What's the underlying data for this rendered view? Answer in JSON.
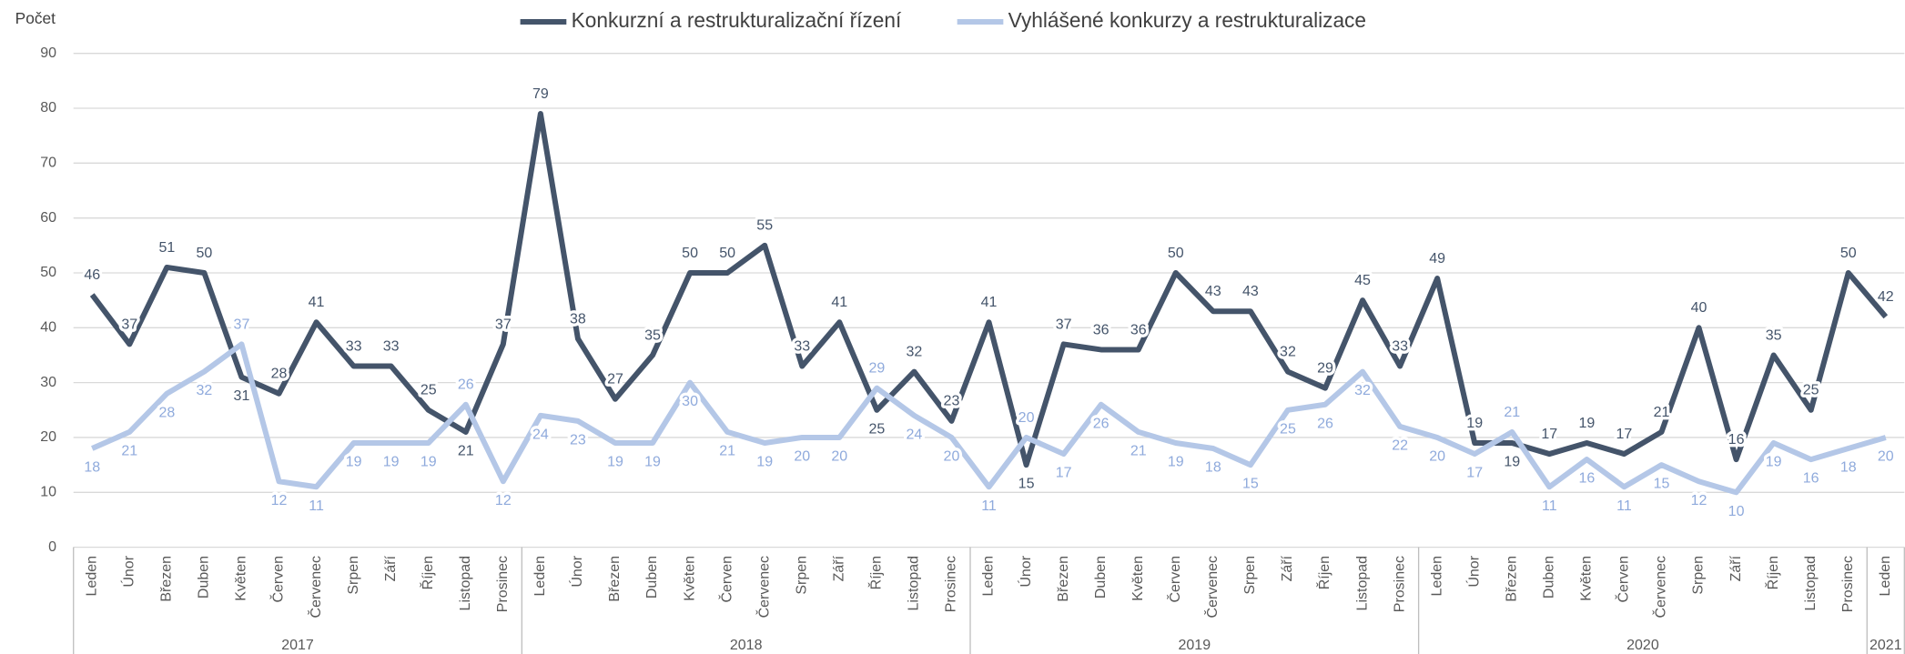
{
  "chart_data": {
    "type": "line",
    "y_axis_label": "Počet",
    "ylim": [
      0,
      90
    ],
    "yticks": [
      0,
      10,
      20,
      30,
      40,
      50,
      60,
      70,
      80,
      90
    ],
    "grid": true,
    "legend": "top",
    "groups": [
      {
        "name": "2017",
        "categories": [
          "Leden",
          "Únor",
          "Březen",
          "Duben",
          "Květen",
          "Červen",
          "Červenec",
          "Srpen",
          "Září",
          "Říjen",
          "Listopad",
          "Prosinec"
        ]
      },
      {
        "name": "2018",
        "categories": [
          "Leden",
          "Únor",
          "Březen",
          "Duben",
          "Květen",
          "Červen",
          "Červenec",
          "Srpen",
          "Září",
          "Říjen",
          "Listopad",
          "Prosinec"
        ]
      },
      {
        "name": "2019",
        "categories": [
          "Leden",
          "Únor",
          "Březen",
          "Duben",
          "Květen",
          "Červen",
          "Červenec",
          "Srpen",
          "Září",
          "Říjen",
          "Listopad",
          "Prosinec"
        ]
      },
      {
        "name": "2020",
        "categories": [
          "Leden",
          "Únor",
          "Březen",
          "Duben",
          "Květen",
          "Červen",
          "Červenec",
          "Srpen",
          "Září",
          "Říjen",
          "Listopad",
          "Prosinec"
        ]
      },
      {
        "name": "2021",
        "categories": [
          "Leden"
        ]
      }
    ],
    "series": [
      {
        "name": "Konkurzní a restrukturalizační řízení",
        "color": "#44546a",
        "values": [
          46,
          37,
          51,
          50,
          31,
          28,
          41,
          33,
          33,
          25,
          21,
          37,
          79,
          38,
          27,
          35,
          50,
          50,
          55,
          33,
          41,
          25,
          32,
          23,
          41,
          15,
          37,
          36,
          36,
          50,
          43,
          43,
          32,
          29,
          45,
          33,
          49,
          19,
          19,
          17,
          19,
          17,
          21,
          40,
          16,
          35,
          25,
          50,
          42
        ]
      },
      {
        "name": "Vyhlášené konkurzy a restrukturalizace",
        "color": "#b4c7e7",
        "values": [
          18,
          21,
          28,
          32,
          37,
          12,
          11,
          19,
          19,
          19,
          26,
          12,
          24,
          23,
          19,
          19,
          30,
          21,
          19,
          20,
          20,
          29,
          24,
          20,
          11,
          20,
          17,
          26,
          21,
          19,
          18,
          15,
          25,
          26,
          32,
          22,
          20,
          17,
          21,
          11,
          16,
          11,
          15,
          12,
          10,
          19,
          16,
          18,
          20
        ]
      }
    ]
  }
}
